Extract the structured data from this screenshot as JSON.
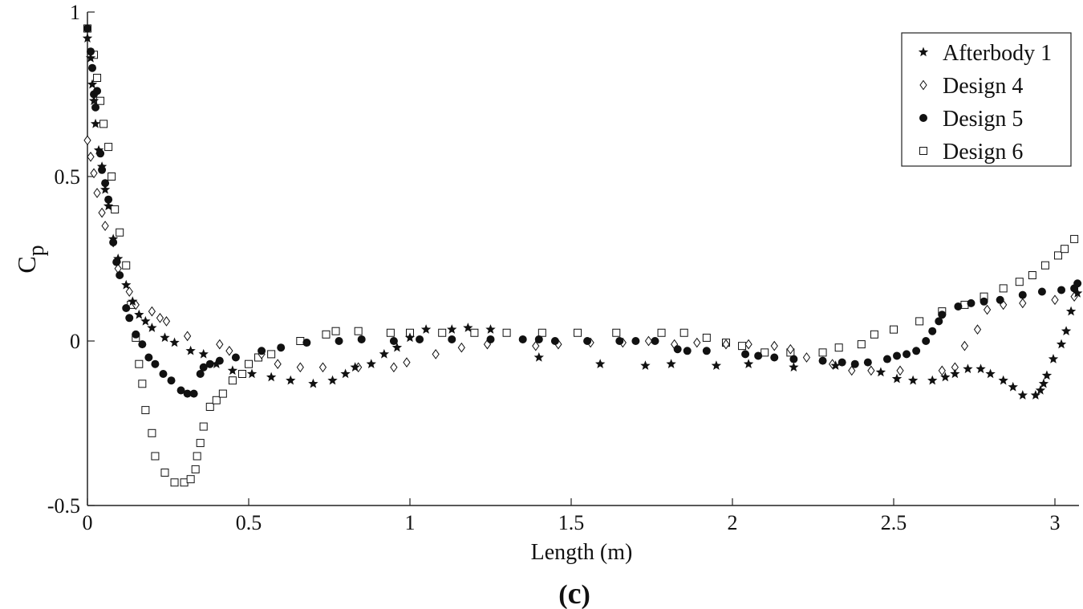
{
  "chart_data": {
    "type": "scatter",
    "xlabel": "Length (m)",
    "ylabel": "C",
    "ylabel_subscript": "p",
    "caption_open": "(",
    "caption_letter": "c",
    "caption_close": ")",
    "xlim": [
      0,
      3.08
    ],
    "ylim": [
      -0.5,
      1
    ],
    "xticks": [
      0,
      0.5,
      1,
      1.5,
      2,
      2.5,
      3
    ],
    "xtick_labels": [
      "0",
      "0.5",
      "1",
      "1.5",
      "2",
      "2.5",
      "3"
    ],
    "yticks": [
      -0.5,
      0,
      0.5,
      1
    ],
    "ytick_labels": [
      "-0.5",
      "0",
      "0.5",
      "1"
    ],
    "grid": false,
    "legend_position": "top-right",
    "series": [
      {
        "name": "Afterbody 1",
        "marker": "star",
        "points": [
          [
            0.0,
            0.92
          ],
          [
            0.01,
            0.86
          ],
          [
            0.015,
            0.78
          ],
          [
            0.02,
            0.73
          ],
          [
            0.025,
            0.66
          ],
          [
            0.035,
            0.58
          ],
          [
            0.045,
            0.53
          ],
          [
            0.055,
            0.46
          ],
          [
            0.065,
            0.41
          ],
          [
            0.08,
            0.31
          ],
          [
            0.095,
            0.25
          ],
          [
            0.12,
            0.17
          ],
          [
            0.14,
            0.12
          ],
          [
            0.16,
            0.08
          ],
          [
            0.18,
            0.06
          ],
          [
            0.2,
            0.04
          ],
          [
            0.24,
            0.01
          ],
          [
            0.27,
            -0.005
          ],
          [
            0.32,
            -0.03
          ],
          [
            0.36,
            -0.04
          ],
          [
            0.4,
            -0.07
          ],
          [
            0.45,
            -0.09
          ],
          [
            0.51,
            -0.1
          ],
          [
            0.57,
            -0.11
          ],
          [
            0.63,
            -0.12
          ],
          [
            0.7,
            -0.13
          ],
          [
            0.76,
            -0.12
          ],
          [
            0.8,
            -0.1
          ],
          [
            0.83,
            -0.08
          ],
          [
            0.88,
            -0.07
          ],
          [
            0.92,
            -0.04
          ],
          [
            0.96,
            -0.02
          ],
          [
            1.0,
            0.01
          ],
          [
            1.05,
            0.035
          ],
          [
            1.13,
            0.035
          ],
          [
            1.18,
            0.04
          ],
          [
            1.25,
            0.035
          ],
          [
            1.4,
            -0.05
          ],
          [
            1.59,
            -0.07
          ],
          [
            1.73,
            -0.075
          ],
          [
            1.81,
            -0.07
          ],
          [
            1.95,
            -0.075
          ],
          [
            2.05,
            -0.07
          ],
          [
            2.19,
            -0.08
          ],
          [
            2.32,
            -0.075
          ],
          [
            2.46,
            -0.095
          ],
          [
            2.51,
            -0.115
          ],
          [
            2.56,
            -0.12
          ],
          [
            2.62,
            -0.12
          ],
          [
            2.66,
            -0.11
          ],
          [
            2.69,
            -0.1
          ],
          [
            2.73,
            -0.085
          ],
          [
            2.77,
            -0.085
          ],
          [
            2.8,
            -0.1
          ],
          [
            2.84,
            -0.12
          ],
          [
            2.87,
            -0.14
          ],
          [
            2.9,
            -0.165
          ],
          [
            2.94,
            -0.165
          ],
          [
            2.955,
            -0.15
          ],
          [
            2.965,
            -0.13
          ],
          [
            2.975,
            -0.105
          ],
          [
            2.995,
            -0.055
          ],
          [
            3.02,
            -0.01
          ],
          [
            3.035,
            0.03
          ],
          [
            3.05,
            0.09
          ],
          [
            3.07,
            0.145
          ]
        ]
      },
      {
        "name": "Design 4",
        "marker": "diamond",
        "points": [
          [
            0.0,
            0.61
          ],
          [
            0.01,
            0.56
          ],
          [
            0.02,
            0.51
          ],
          [
            0.03,
            0.45
          ],
          [
            0.045,
            0.39
          ],
          [
            0.055,
            0.35
          ],
          [
            0.08,
            0.3
          ],
          [
            0.095,
            0.22
          ],
          [
            0.13,
            0.15
          ],
          [
            0.15,
            0.11
          ],
          [
            0.2,
            0.09
          ],
          [
            0.225,
            0.07
          ],
          [
            0.245,
            0.06
          ],
          [
            0.31,
            0.015
          ],
          [
            0.41,
            -0.01
          ],
          [
            0.44,
            -0.03
          ],
          [
            0.54,
            -0.04
          ],
          [
            0.59,
            -0.07
          ],
          [
            0.66,
            -0.08
          ],
          [
            0.73,
            -0.08
          ],
          [
            0.84,
            -0.08
          ],
          [
            0.95,
            -0.08
          ],
          [
            0.99,
            -0.065
          ],
          [
            1.08,
            -0.04
          ],
          [
            1.16,
            -0.02
          ],
          [
            1.24,
            -0.01
          ],
          [
            1.39,
            -0.015
          ],
          [
            1.46,
            -0.01
          ],
          [
            1.56,
            -0.005
          ],
          [
            1.66,
            -0.005
          ],
          [
            1.74,
            0.0
          ],
          [
            1.82,
            -0.01
          ],
          [
            1.89,
            -0.005
          ],
          [
            1.98,
            -0.01
          ],
          [
            2.05,
            -0.01
          ],
          [
            2.13,
            -0.015
          ],
          [
            2.18,
            -0.025
          ],
          [
            2.23,
            -0.05
          ],
          [
            2.31,
            -0.07
          ],
          [
            2.37,
            -0.09
          ],
          [
            2.43,
            -0.09
          ],
          [
            2.52,
            -0.09
          ],
          [
            2.65,
            -0.09
          ],
          [
            2.69,
            -0.08
          ],
          [
            2.72,
            -0.015
          ],
          [
            2.76,
            0.035
          ],
          [
            2.79,
            0.095
          ],
          [
            2.84,
            0.11
          ],
          [
            2.9,
            0.115
          ],
          [
            3.0,
            0.125
          ],
          [
            3.06,
            0.135
          ]
        ]
      },
      {
        "name": "Design 5",
        "marker": "circle",
        "points": [
          [
            0.0,
            0.95
          ],
          [
            0.01,
            0.88
          ],
          [
            0.015,
            0.83
          ],
          [
            0.02,
            0.75
          ],
          [
            0.025,
            0.71
          ],
          [
            0.03,
            0.76
          ],
          [
            0.04,
            0.57
          ],
          [
            0.045,
            0.52
          ],
          [
            0.055,
            0.48
          ],
          [
            0.065,
            0.43
          ],
          [
            0.08,
            0.3
          ],
          [
            0.09,
            0.24
          ],
          [
            0.1,
            0.2
          ],
          [
            0.12,
            0.1
          ],
          [
            0.13,
            0.07
          ],
          [
            0.15,
            0.02
          ],
          [
            0.17,
            -0.01
          ],
          [
            0.19,
            -0.05
          ],
          [
            0.21,
            -0.07
          ],
          [
            0.235,
            -0.1
          ],
          [
            0.26,
            -0.12
          ],
          [
            0.29,
            -0.15
          ],
          [
            0.31,
            -0.16
          ],
          [
            0.33,
            -0.16
          ],
          [
            0.35,
            -0.1
          ],
          [
            0.36,
            -0.08
          ],
          [
            0.38,
            -0.07
          ],
          [
            0.41,
            -0.06
          ],
          [
            0.46,
            -0.05
          ],
          [
            0.54,
            -0.03
          ],
          [
            0.6,
            -0.02
          ],
          [
            0.68,
            -0.005
          ],
          [
            0.78,
            0.0
          ],
          [
            0.85,
            0.005
          ],
          [
            0.95,
            0.0
          ],
          [
            1.03,
            0.005
          ],
          [
            1.13,
            0.005
          ],
          [
            1.25,
            0.005
          ],
          [
            1.35,
            0.005
          ],
          [
            1.4,
            0.005
          ],
          [
            1.45,
            0.0
          ],
          [
            1.55,
            0.0
          ],
          [
            1.65,
            0.0
          ],
          [
            1.7,
            0.0
          ],
          [
            1.76,
            0.0
          ],
          [
            1.83,
            -0.025
          ],
          [
            1.86,
            -0.03
          ],
          [
            1.92,
            -0.03
          ],
          [
            2.04,
            -0.04
          ],
          [
            2.08,
            -0.045
          ],
          [
            2.13,
            -0.05
          ],
          [
            2.19,
            -0.055
          ],
          [
            2.28,
            -0.06
          ],
          [
            2.34,
            -0.065
          ],
          [
            2.38,
            -0.07
          ],
          [
            2.42,
            -0.065
          ],
          [
            2.48,
            -0.055
          ],
          [
            2.51,
            -0.045
          ],
          [
            2.54,
            -0.04
          ],
          [
            2.57,
            -0.03
          ],
          [
            2.6,
            -0.0
          ],
          [
            2.62,
            0.03
          ],
          [
            2.64,
            0.06
          ],
          [
            2.65,
            0.08
          ],
          [
            2.7,
            0.105
          ],
          [
            2.74,
            0.115
          ],
          [
            2.78,
            0.12
          ],
          [
            2.83,
            0.125
          ],
          [
            2.9,
            0.14
          ],
          [
            2.96,
            0.15
          ],
          [
            3.02,
            0.155
          ],
          [
            3.06,
            0.16
          ],
          [
            3.07,
            0.175
          ]
        ]
      },
      {
        "name": "Design 6",
        "marker": "square",
        "points": [
          [
            0.0,
            0.95
          ],
          [
            0.02,
            0.87
          ],
          [
            0.03,
            0.8
          ],
          [
            0.04,
            0.73
          ],
          [
            0.05,
            0.66
          ],
          [
            0.065,
            0.59
          ],
          [
            0.075,
            0.5
          ],
          [
            0.085,
            0.4
          ],
          [
            0.1,
            0.33
          ],
          [
            0.12,
            0.23
          ],
          [
            0.135,
            0.11
          ],
          [
            0.15,
            0.01
          ],
          [
            0.16,
            -0.07
          ],
          [
            0.17,
            -0.13
          ],
          [
            0.18,
            -0.21
          ],
          [
            0.2,
            -0.28
          ],
          [
            0.21,
            -0.35
          ],
          [
            0.24,
            -0.4
          ],
          [
            0.27,
            -0.43
          ],
          [
            0.3,
            -0.43
          ],
          [
            0.32,
            -0.42
          ],
          [
            0.335,
            -0.39
          ],
          [
            0.34,
            -0.35
          ],
          [
            0.35,
            -0.31
          ],
          [
            0.36,
            -0.26
          ],
          [
            0.38,
            -0.2
          ],
          [
            0.4,
            -0.18
          ],
          [
            0.42,
            -0.16
          ],
          [
            0.45,
            -0.12
          ],
          [
            0.48,
            -0.1
          ],
          [
            0.5,
            -0.07
          ],
          [
            0.53,
            -0.05
          ],
          [
            0.57,
            -0.04
          ],
          [
            0.66,
            0.0
          ],
          [
            0.74,
            0.02
          ],
          [
            0.77,
            0.03
          ],
          [
            0.84,
            0.03
          ],
          [
            0.94,
            0.025
          ],
          [
            1.0,
            0.025
          ],
          [
            1.1,
            0.025
          ],
          [
            1.2,
            0.025
          ],
          [
            1.3,
            0.025
          ],
          [
            1.41,
            0.025
          ],
          [
            1.52,
            0.025
          ],
          [
            1.64,
            0.025
          ],
          [
            1.78,
            0.025
          ],
          [
            1.85,
            0.025
          ],
          [
            1.92,
            0.01
          ],
          [
            1.98,
            -0.005
          ],
          [
            2.03,
            -0.015
          ],
          [
            2.1,
            -0.035
          ],
          [
            2.18,
            -0.035
          ],
          [
            2.28,
            -0.035
          ],
          [
            2.33,
            -0.02
          ],
          [
            2.4,
            -0.01
          ],
          [
            2.44,
            0.02
          ],
          [
            2.5,
            0.035
          ],
          [
            2.58,
            0.06
          ],
          [
            2.65,
            0.09
          ],
          [
            2.72,
            0.11
          ],
          [
            2.78,
            0.135
          ],
          [
            2.84,
            0.16
          ],
          [
            2.89,
            0.18
          ],
          [
            2.93,
            0.2
          ],
          [
            2.97,
            0.23
          ],
          [
            3.01,
            0.26
          ],
          [
            3.03,
            0.28
          ],
          [
            3.06,
            0.31
          ]
        ]
      }
    ]
  }
}
